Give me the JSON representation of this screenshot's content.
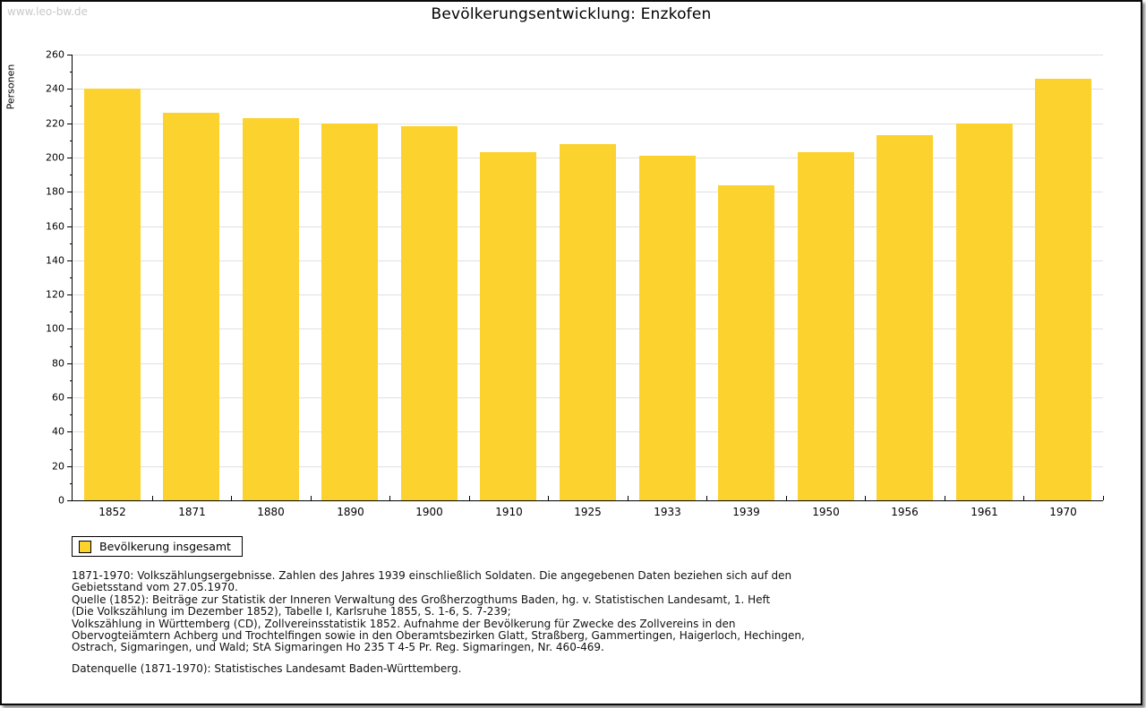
{
  "watermark": "www.leo-bw.de",
  "title": "Bevölkerungsentwicklung: Enzkofen",
  "chart_data": {
    "type": "bar",
    "title": "Bevölkerungsentwicklung: Enzkofen",
    "xlabel": "",
    "ylabel": "Personen",
    "categories": [
      "1852",
      "1871",
      "1880",
      "1890",
      "1900",
      "1910",
      "1925",
      "1933",
      "1939",
      "1950",
      "1956",
      "1961",
      "1970"
    ],
    "values": [
      240,
      226,
      223,
      220,
      218,
      203,
      208,
      201,
      184,
      203,
      213,
      220,
      246
    ],
    "series_name": "Bevölkerung insgesamt",
    "ylim": [
      0,
      260
    ],
    "ytick_major": 20,
    "ytick_minor": 10,
    "grid": true,
    "legend_position": "bottom-left",
    "bar_color": "#FCD22F"
  },
  "legend": {
    "label": "Bevölkerung insgesamt",
    "swatch_color": "#FCD22F"
  },
  "footnotes": {
    "lines": [
      "1871-1970: Volkszählungsergebnisse. Zahlen des Jahres 1939 einschließlich Soldaten. Die angegebenen Daten beziehen sich auf den",
      "Gebietsstand vom 27.05.1970.",
      "Quelle (1852): Beiträge zur Statistik der Inneren Verwaltung des Großherzogthums Baden, hg. v. Statistischen Landesamt, 1. Heft",
      "(Die Volkszählung im Dezember 1852), Tabelle I, Karlsruhe 1855, S. 1-6, S. 7-239;",
      "Volkszählung in Württemberg (CD), Zollvereinsstatistik 1852. Aufnahme der Bevölkerung für Zwecke des Zollvereins in den",
      "Obervogteiämtern Achberg und Trochtelfingen sowie in den Oberamtsbezirken Glatt, Straßberg, Gammertingen, Haigerloch, Hechingen,",
      "Ostrach, Sigmaringen, und Wald; StA Sigmaringen Ho 235 T 4-5 Pr. Reg. Sigmaringen, Nr. 460-469."
    ],
    "datasource": "Datenquelle (1871-1970): Statistisches Landesamt Baden-Württemberg."
  },
  "colors": {
    "bar": "#FCD22F",
    "gridline": "#E0E0E0",
    "axis": "#000000",
    "watermark": "#C9C9C9",
    "background": "#FFFFFF"
  }
}
